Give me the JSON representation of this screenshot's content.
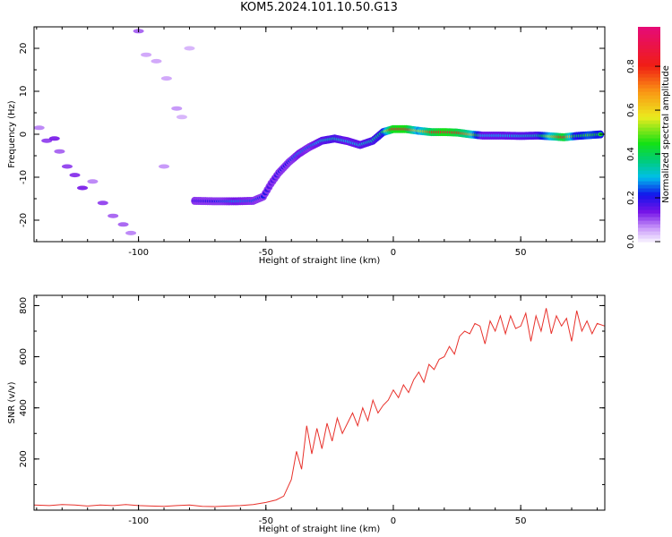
{
  "chart_data": [
    {
      "type": "heatmap",
      "title": "KOM5.2024.101.10.50.G13",
      "xlabel": "Height of straight line (km)",
      "ylabel": "Frequency (Hz)",
      "xlim": [
        -141,
        83
      ],
      "ylim": [
        -25,
        25
      ],
      "xticks": [
        -100,
        -50,
        0,
        50
      ],
      "yticks": [
        -20,
        -10,
        0,
        10,
        20
      ],
      "xtick_labels": [
        "-100",
        "-50",
        "0",
        "50"
      ],
      "ytick_labels": [
        "-20",
        "-10",
        "0",
        "10",
        "20"
      ],
      "colorbar": {
        "label": "Normalized spectral amplitude",
        "ticks": [
          "0.0",
          "0.2",
          "0.4",
          "0.6",
          "0.8"
        ],
        "range": [
          0,
          0.98
        ],
        "colormap": "rainbow: white-violet-blue-cyan-green-yellow-orange-red-magenta"
      },
      "ridge": [
        {
          "x": -78,
          "y": -15.5,
          "amp": 0.18
        },
        {
          "x": -70,
          "y": -15.6,
          "amp": 0.22
        },
        {
          "x": -62,
          "y": -15.6,
          "amp": 0.28
        },
        {
          "x": -55,
          "y": -15.5,
          "amp": 0.25
        },
        {
          "x": -51,
          "y": -14.5,
          "amp": 0.22
        },
        {
          "x": -48,
          "y": -11.5,
          "amp": 0.16
        },
        {
          "x": -45,
          "y": -9.0,
          "amp": 0.2
        },
        {
          "x": -41,
          "y": -6.5,
          "amp": 0.22
        },
        {
          "x": -37,
          "y": -4.5,
          "amp": 0.28
        },
        {
          "x": -33,
          "y": -3.0,
          "amp": 0.25
        },
        {
          "x": -28,
          "y": -1.5,
          "amp": 0.32
        },
        {
          "x": -23,
          "y": -1.0,
          "amp": 0.35
        },
        {
          "x": -18,
          "y": -1.6,
          "amp": 0.3
        },
        {
          "x": -13,
          "y": -2.5,
          "amp": 0.32
        },
        {
          "x": -8,
          "y": -1.5,
          "amp": 0.35
        },
        {
          "x": -4,
          "y": 0.5,
          "amp": 0.4
        },
        {
          "x": 0,
          "y": 1.2,
          "amp": 0.9
        },
        {
          "x": 5,
          "y": 1.2,
          "amp": 0.92
        },
        {
          "x": 10,
          "y": 0.8,
          "amp": 0.55
        },
        {
          "x": 15,
          "y": 0.5,
          "amp": 0.8
        },
        {
          "x": 20,
          "y": 0.5,
          "amp": 0.92
        },
        {
          "x": 25,
          "y": 0.4,
          "amp": 0.85
        },
        {
          "x": 30,
          "y": 0.0,
          "amp": 0.7
        },
        {
          "x": 35,
          "y": -0.3,
          "amp": 0.3
        },
        {
          "x": 42,
          "y": -0.3,
          "amp": 0.3
        },
        {
          "x": 50,
          "y": -0.4,
          "amp": 0.32
        },
        {
          "x": 57,
          "y": -0.3,
          "amp": 0.35
        },
        {
          "x": 62,
          "y": -0.5,
          "amp": 0.6
        },
        {
          "x": 67,
          "y": -0.7,
          "amp": 0.88
        },
        {
          "x": 72,
          "y": -0.4,
          "amp": 0.4
        },
        {
          "x": 77,
          "y": -0.2,
          "amp": 0.5
        },
        {
          "x": 82,
          "y": 0.0,
          "amp": 0.42
        }
      ],
      "scatter_band": [
        {
          "x": -139,
          "y": 1.5,
          "amp": 0.08
        },
        {
          "x": -136,
          "y": -1.5,
          "amp": 0.12
        },
        {
          "x": -133,
          "y": -1.0,
          "amp": 0.14
        },
        {
          "x": -131,
          "y": -4.0,
          "amp": 0.1
        },
        {
          "x": -128,
          "y": -7.5,
          "amp": 0.12
        },
        {
          "x": -125,
          "y": -9.5,
          "amp": 0.13
        },
        {
          "x": -122,
          "y": -12.5,
          "amp": 0.14
        },
        {
          "x": -118,
          "y": -11.0,
          "amp": 0.08
        },
        {
          "x": -114,
          "y": -16.0,
          "amp": 0.12
        },
        {
          "x": -110,
          "y": -19.0,
          "amp": 0.1
        },
        {
          "x": -106,
          "y": -21.0,
          "amp": 0.1
        },
        {
          "x": -103,
          "y": -23.0,
          "amp": 0.08
        },
        {
          "x": -100,
          "y": 24.0,
          "amp": 0.1
        },
        {
          "x": -97,
          "y": 18.5,
          "amp": 0.06
        },
        {
          "x": -93,
          "y": 17.0,
          "amp": 0.06
        },
        {
          "x": -89,
          "y": 13.0,
          "amp": 0.06
        },
        {
          "x": -85,
          "y": 6.0,
          "amp": 0.07
        },
        {
          "x": -90,
          "y": -7.5,
          "amp": 0.07
        },
        {
          "x": -83,
          "y": 4.0,
          "amp": 0.05
        },
        {
          "x": -80,
          "y": 20.0,
          "amp": 0.05
        }
      ]
    },
    {
      "type": "line",
      "xlabel": "Height of straight line (km)",
      "ylabel": "SNR (v/v)",
      "xlim": [
        -141,
        83
      ],
      "ylim": [
        0,
        840
      ],
      "xticks": [
        -100,
        -50,
        0,
        50
      ],
      "yticks": [
        200,
        400,
        600,
        800
      ],
      "xtick_labels": [
        "-100",
        "-50",
        "0",
        "50"
      ],
      "ytick_labels": [
        "200",
        "400",
        "600",
        "800"
      ],
      "color": "#e8312b",
      "x": [
        -141,
        -135,
        -130,
        -125,
        -120,
        -115,
        -110,
        -105,
        -100,
        -95,
        -90,
        -85,
        -80,
        -75,
        -70,
        -65,
        -60,
        -55,
        -50,
        -46,
        -43,
        -40,
        -38,
        -36,
        -34,
        -32,
        -30,
        -28,
        -26,
        -24,
        -22,
        -20,
        -18,
        -16,
        -14,
        -12,
        -10,
        -8,
        -6,
        -4,
        -2,
        0,
        2,
        4,
        6,
        8,
        10,
        12,
        14,
        16,
        18,
        20,
        22,
        24,
        26,
        28,
        30,
        32,
        34,
        36,
        38,
        40,
        42,
        44,
        46,
        48,
        50,
        52,
        54,
        56,
        58,
        60,
        62,
        64,
        66,
        68,
        70,
        72,
        74,
        76,
        78,
        80,
        83
      ],
      "y": [
        20,
        18,
        22,
        20,
        16,
        20,
        18,
        22,
        18,
        16,
        15,
        18,
        20,
        15,
        14,
        16,
        18,
        22,
        30,
        40,
        55,
        120,
        230,
        160,
        330,
        220,
        320,
        240,
        340,
        270,
        360,
        300,
        340,
        380,
        330,
        400,
        350,
        430,
        380,
        410,
        430,
        470,
        440,
        490,
        460,
        510,
        540,
        500,
        570,
        550,
        590,
        600,
        640,
        610,
        680,
        700,
        690,
        730,
        720,
        650,
        740,
        700,
        760,
        690,
        760,
        710,
        720,
        770,
        660,
        760,
        700,
        790,
        690,
        760,
        720,
        750,
        660,
        780,
        700,
        740,
        690,
        730,
        720
      ]
    }
  ]
}
